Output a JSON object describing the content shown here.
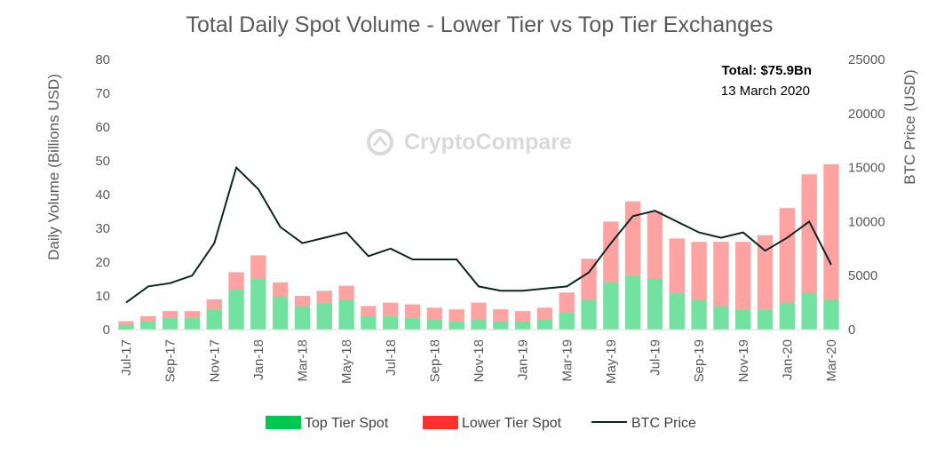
{
  "chart_data": {
    "type": "bar",
    "title": "Total Daily Spot Volume - Lower Tier vs Top Tier Exchanges",
    "ylabel": "Daily Volume (Billions USD)",
    "y2label": "BTC Price (USD)",
    "ylim": [
      0,
      80
    ],
    "y2lim": [
      0,
      25000
    ],
    "yticks": [
      "0",
      "10",
      "20",
      "30",
      "40",
      "50",
      "60",
      "70",
      "80"
    ],
    "y2ticks": [
      "0",
      "5000",
      "10000",
      "15000",
      "20000",
      "25000"
    ],
    "xticks": [
      "Jul-17",
      "Sep-17",
      "Nov-17",
      "Jan-18",
      "Mar-18",
      "May-18",
      "Jul-18",
      "Sep-18",
      "Nov-18",
      "Jan-19",
      "Mar-19",
      "May-19",
      "Jul-19",
      "Sep-19",
      "Nov-19",
      "Jan-20",
      "Mar-20"
    ],
    "watermark": "CryptoCompare",
    "annotation": {
      "bold": "Total: $75.9Bn",
      "text": "13 March 2020"
    },
    "colors": {
      "top": "#00c850",
      "lower": "#ff3030",
      "btc": "#0d2620"
    },
    "series": [
      {
        "name": "Top Tier Spot",
        "x": [
          "Jul-17",
          "Aug-17",
          "Sep-17",
          "Oct-17",
          "Nov-17",
          "Dec-17",
          "Jan-18",
          "Feb-18",
          "Mar-18",
          "Apr-18",
          "May-18",
          "Jun-18",
          "Jul-18",
          "Aug-18",
          "Sep-18",
          "Oct-18",
          "Nov-18",
          "Dec-18",
          "Jan-19",
          "Feb-19",
          "Mar-19",
          "Apr-19",
          "May-19",
          "Jun-19",
          "Jul-19",
          "Aug-19",
          "Sep-19",
          "Oct-19",
          "Nov-19",
          "Dec-19",
          "Jan-20",
          "Feb-20",
          "Mar-20"
        ],
        "values": [
          1.5,
          2.5,
          3.5,
          3.5,
          6,
          12,
          15,
          10,
          7,
          8,
          9,
          4,
          4,
          3.5,
          3,
          2.5,
          3,
          2.5,
          2.5,
          3,
          5,
          9,
          14,
          16,
          15,
          11,
          9,
          7,
          6,
          6,
          8,
          11,
          9
        ]
      },
      {
        "name": "Lower Tier Spot",
        "x": [
          "Jul-17",
          "Aug-17",
          "Sep-17",
          "Oct-17",
          "Nov-17",
          "Dec-17",
          "Jan-18",
          "Feb-18",
          "Mar-18",
          "Apr-18",
          "May-18",
          "Jun-18",
          "Jul-18",
          "Aug-18",
          "Sep-18",
          "Oct-18",
          "Nov-18",
          "Dec-18",
          "Jan-19",
          "Feb-19",
          "Mar-19",
          "Apr-19",
          "May-19",
          "Jun-19",
          "Jul-19",
          "Aug-19",
          "Sep-19",
          "Oct-19",
          "Nov-19",
          "Dec-19",
          "Jan-20",
          "Feb-20",
          "Mar-20"
        ],
        "values": [
          1,
          1.5,
          2,
          2,
          3,
          5,
          7,
          4,
          3,
          3.5,
          4,
          3,
          4,
          4,
          3.5,
          3.5,
          5,
          3.5,
          3,
          3.5,
          6,
          12,
          18,
          22,
          20,
          16,
          17,
          19,
          20,
          22,
          28,
          35,
          40
        ]
      },
      {
        "name": "BTC Price",
        "x": [
          "Jul-17",
          "Aug-17",
          "Sep-17",
          "Oct-17",
          "Nov-17",
          "Dec-17",
          "Jan-18",
          "Feb-18",
          "Mar-18",
          "Apr-18",
          "May-18",
          "Jun-18",
          "Jul-18",
          "Aug-18",
          "Sep-18",
          "Oct-18",
          "Nov-18",
          "Dec-18",
          "Jan-19",
          "Feb-19",
          "Mar-19",
          "Apr-19",
          "May-19",
          "Jun-19",
          "Jul-19",
          "Aug-19",
          "Sep-19",
          "Oct-19",
          "Nov-19",
          "Dec-19",
          "Jan-20",
          "Feb-20",
          "Mar-20"
        ],
        "values": [
          2500,
          4000,
          4300,
          5000,
          8000,
          15000,
          13000,
          9500,
          8000,
          8500,
          9000,
          6800,
          7500,
          6500,
          6500,
          6500,
          4000,
          3600,
          3600,
          3800,
          4000,
          5300,
          8000,
          10500,
          11000,
          10000,
          9000,
          8500,
          9000,
          7300,
          8500,
          10000,
          6000
        ]
      }
    ]
  }
}
